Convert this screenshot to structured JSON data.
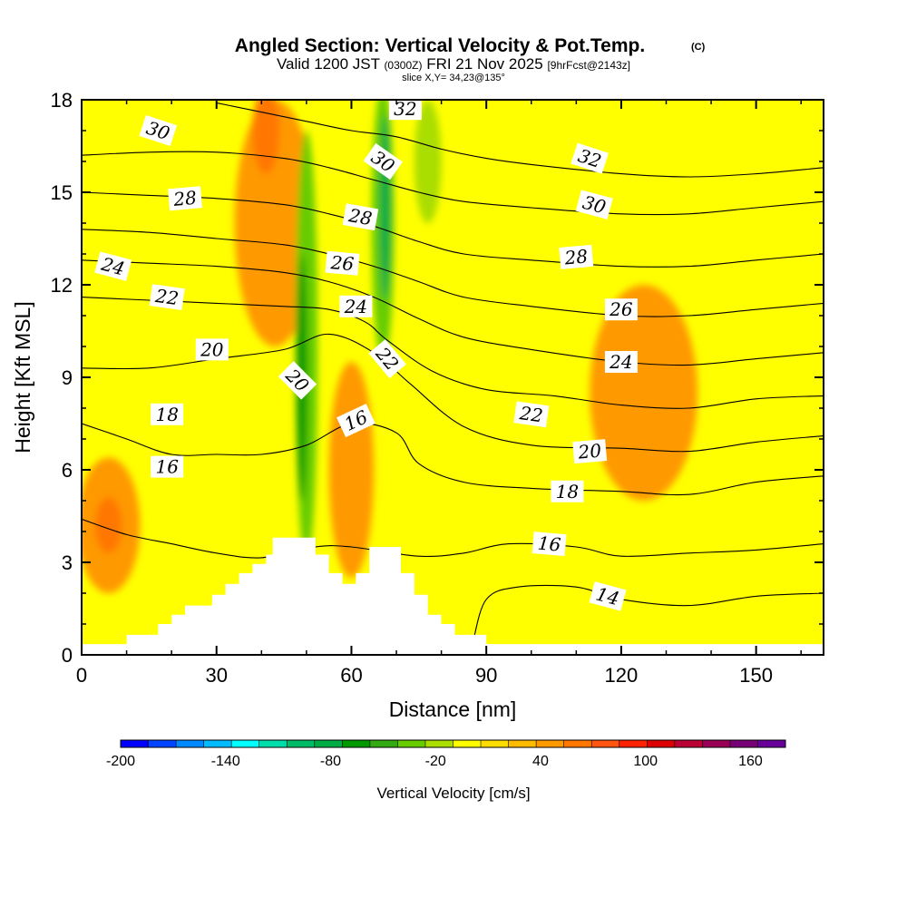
{
  "title": {
    "main": "Angled Section: Vertical Velocity & Pot.Temp.",
    "copyright": "(C)",
    "valid_prefix": "Valid 1200 JST",
    "valid_utc": "(0300Z)",
    "valid_date": "FRI 21 Nov 2025",
    "forecast": "[9hrFcst@2143z]",
    "slice": "slice X,Y= 34,23@135°"
  },
  "chart_data": {
    "type": "heatmap",
    "xlabel": "Distance [nm]",
    "ylabel": "Height [Kft MSL]",
    "xlim": [
      0,
      165
    ],
    "ylim": [
      0,
      18
    ],
    "xticks": [
      0,
      30,
      60,
      90,
      120,
      150
    ],
    "yticks": [
      0,
      3,
      6,
      9,
      12,
      15,
      18
    ],
    "grid": false,
    "terrain": [
      [
        0,
        0.35
      ],
      [
        10,
        0.35
      ],
      [
        10,
        0.65
      ],
      [
        17,
        0.65
      ],
      [
        17,
        1.0
      ],
      [
        20,
        1.0
      ],
      [
        20,
        1.3
      ],
      [
        23,
        1.3
      ],
      [
        23,
        1.6
      ],
      [
        29,
        1.6
      ],
      [
        29,
        1.95
      ],
      [
        32,
        1.95
      ],
      [
        32,
        2.3
      ],
      [
        35,
        2.3
      ],
      [
        35,
        2.65
      ],
      [
        38,
        2.65
      ],
      [
        38,
        2.95
      ],
      [
        41,
        2.95
      ],
      [
        41,
        3.25
      ],
      [
        42.5,
        3.25
      ],
      [
        42.5,
        3.8
      ],
      [
        52,
        3.8
      ],
      [
        52,
        3.25
      ],
      [
        55,
        3.25
      ],
      [
        55,
        2.65
      ],
      [
        58,
        2.65
      ],
      [
        58,
        2.3
      ],
      [
        61,
        2.3
      ],
      [
        61,
        2.65
      ],
      [
        64,
        2.65
      ],
      [
        64,
        3.5
      ],
      [
        71,
        3.5
      ],
      [
        71,
        2.65
      ],
      [
        74,
        2.65
      ],
      [
        74,
        1.95
      ],
      [
        77,
        1.95
      ],
      [
        77,
        1.3
      ],
      [
        80,
        1.3
      ],
      [
        80,
        1.0
      ],
      [
        83,
        1.0
      ],
      [
        83,
        0.65
      ],
      [
        90,
        0.65
      ],
      [
        90,
        0.35
      ],
      [
        165,
        0.35
      ]
    ],
    "velocity_features": [
      {
        "kind": "updraft",
        "value": 40,
        "x": 43,
        "y": 14,
        "rx": 9,
        "ry": 4
      },
      {
        "kind": "updraft",
        "value": 60,
        "x": 41,
        "y": 17,
        "rx": 3,
        "ry": 1.4
      },
      {
        "kind": "updraft",
        "value": 40,
        "x": 6,
        "y": 4.2,
        "rx": 7,
        "ry": 2.2
      },
      {
        "kind": "updraft",
        "value": 60,
        "x": 6,
        "y": 4.2,
        "rx": 3,
        "ry": 0.9
      },
      {
        "kind": "updraft",
        "value": 40,
        "x": 60,
        "y": 6,
        "rx": 5,
        "ry": 3.5
      },
      {
        "kind": "updraft",
        "value": 40,
        "x": 125,
        "y": 8.5,
        "rx": 12,
        "ry": 3.5
      },
      {
        "kind": "downdraft",
        "value": -40,
        "x": 50,
        "y": 10,
        "rx": 2.5,
        "ry": 7
      },
      {
        "kind": "downdraft",
        "value": -60,
        "x": 49,
        "y": 9,
        "rx": 1.2,
        "ry": 4
      },
      {
        "kind": "downdraft",
        "value": -40,
        "x": 67,
        "y": 14,
        "rx": 2.5,
        "ry": 4.5
      },
      {
        "kind": "downdraft",
        "value": -80,
        "x": 67.5,
        "y": 14.5,
        "rx": 1.2,
        "ry": 3
      },
      {
        "kind": "downdraft",
        "value": -20,
        "x": 77,
        "y": 16,
        "rx": 3,
        "ry": 2
      }
    ],
    "contours": [
      {
        "value": 14,
        "points": [
          [
            87,
            0.4
          ],
          [
            90,
            1.8
          ],
          [
            97,
            2.2
          ],
          [
            110,
            2.2
          ],
          [
            120,
            1.8
          ],
          [
            135,
            1.6
          ],
          [
            150,
            1.9
          ],
          [
            165,
            2.0
          ]
        ]
      },
      {
        "value": 16,
        "points": [
          [
            0,
            4.4
          ],
          [
            10,
            3.9
          ],
          [
            20,
            3.6
          ],
          [
            30,
            3.3
          ],
          [
            40,
            3.15
          ],
          [
            52,
            3.5
          ],
          [
            60,
            3.5
          ],
          [
            75,
            3.2
          ],
          [
            85,
            3.3
          ],
          [
            95,
            3.6
          ],
          [
            110,
            3.5
          ],
          [
            120,
            3.2
          ],
          [
            135,
            3.3
          ],
          [
            150,
            3.4
          ],
          [
            165,
            3.6
          ]
        ]
      },
      {
        "value": 18,
        "points": [
          [
            0,
            7.5
          ],
          [
            10,
            7.0
          ],
          [
            20,
            6.5
          ],
          [
            30,
            6.5
          ],
          [
            40,
            6.5
          ],
          [
            50,
            6.8
          ],
          [
            60,
            7.5
          ],
          [
            70,
            7.2
          ],
          [
            75,
            6.2
          ],
          [
            85,
            5.6
          ],
          [
            100,
            5.4
          ],
          [
            120,
            5.3
          ],
          [
            135,
            5.2
          ],
          [
            150,
            5.6
          ],
          [
            165,
            5.8
          ]
        ]
      },
      {
        "value": 20,
        "points": [
          [
            0,
            9.3
          ],
          [
            15,
            9.3
          ],
          [
            30,
            9.6
          ],
          [
            45,
            9.9
          ],
          [
            55,
            10.4
          ],
          [
            65,
            9.8
          ],
          [
            73,
            8.8
          ],
          [
            85,
            7.4
          ],
          [
            100,
            6.8
          ],
          [
            120,
            6.7
          ],
          [
            135,
            6.6
          ],
          [
            150,
            6.9
          ],
          [
            165,
            7.1
          ]
        ]
      },
      {
        "value": 22,
        "points": [
          [
            0,
            11.6
          ],
          [
            15,
            11.5
          ],
          [
            30,
            11.4
          ],
          [
            45,
            11.3
          ],
          [
            55,
            11.2
          ],
          [
            63,
            10.8
          ],
          [
            68,
            10.2
          ],
          [
            78,
            9.2
          ],
          [
            90,
            8.6
          ],
          [
            105,
            8.4
          ],
          [
            120,
            8.1
          ],
          [
            135,
            8.0
          ],
          [
            150,
            8.3
          ],
          [
            165,
            8.4
          ]
        ]
      },
      {
        "value": 24,
        "points": [
          [
            0,
            12.8
          ],
          [
            15,
            12.7
          ],
          [
            30,
            12.6
          ],
          [
            45,
            12.4
          ],
          [
            55,
            12.1
          ],
          [
            65,
            11.6
          ],
          [
            75,
            10.9
          ],
          [
            85,
            10.3
          ],
          [
            100,
            9.9
          ],
          [
            120,
            9.5
          ],
          [
            135,
            9.4
          ],
          [
            150,
            9.6
          ],
          [
            165,
            9.8
          ]
        ]
      },
      {
        "value": 26,
        "points": [
          [
            0,
            13.8
          ],
          [
            15,
            13.7
          ],
          [
            30,
            13.5
          ],
          [
            45,
            13.3
          ],
          [
            55,
            13.0
          ],
          [
            65,
            12.6
          ],
          [
            75,
            12.1
          ],
          [
            85,
            11.6
          ],
          [
            100,
            11.3
          ],
          [
            120,
            11.0
          ],
          [
            135,
            11.0
          ],
          [
            150,
            11.2
          ],
          [
            165,
            11.4
          ]
        ]
      },
      {
        "value": 28,
        "points": [
          [
            0,
            15.0
          ],
          [
            15,
            14.9
          ],
          [
            30,
            14.8
          ],
          [
            45,
            14.6
          ],
          [
            55,
            14.3
          ],
          [
            65,
            13.9
          ],
          [
            75,
            13.4
          ],
          [
            85,
            13.0
          ],
          [
            100,
            12.8
          ],
          [
            120,
            12.6
          ],
          [
            135,
            12.6
          ],
          [
            150,
            12.8
          ],
          [
            165,
            13.0
          ]
        ]
      },
      {
        "value": 30,
        "points": [
          [
            0,
            16.2
          ],
          [
            15,
            16.3
          ],
          [
            30,
            16.3
          ],
          [
            45,
            16.1
          ],
          [
            55,
            15.8
          ],
          [
            65,
            15.4
          ],
          [
            75,
            15.0
          ],
          [
            85,
            14.7
          ],
          [
            100,
            14.5
          ],
          [
            120,
            14.3
          ],
          [
            135,
            14.3
          ],
          [
            150,
            14.5
          ],
          [
            165,
            14.7
          ]
        ]
      },
      {
        "value": 32,
        "points": [
          [
            30,
            17.9
          ],
          [
            40,
            17.6
          ],
          [
            50,
            17.3
          ],
          [
            60,
            17.0
          ],
          [
            70,
            16.8
          ],
          [
            80,
            16.4
          ],
          [
            90,
            16.1
          ],
          [
            100,
            15.9
          ],
          [
            120,
            15.6
          ],
          [
            135,
            15.5
          ],
          [
            150,
            15.6
          ],
          [
            165,
            15.8
          ]
        ]
      }
    ],
    "contour_labels": [
      {
        "text": "30",
        "x": 17,
        "y": 17.0,
        "rot": 18
      },
      {
        "text": "32",
        "x": 72,
        "y": 17.7,
        "rot": 0
      },
      {
        "text": "30",
        "x": 67,
        "y": 16.0,
        "rot": 35
      },
      {
        "text": "32",
        "x": 113,
        "y": 16.1,
        "rot": 18
      },
      {
        "text": "28",
        "x": 23,
        "y": 14.8,
        "rot": -5
      },
      {
        "text": "28",
        "x": 62,
        "y": 14.2,
        "rot": 10
      },
      {
        "text": "30",
        "x": 114,
        "y": 14.6,
        "rot": 15
      },
      {
        "text": "24",
        "x": 7,
        "y": 12.6,
        "rot": 15
      },
      {
        "text": "26",
        "x": 58,
        "y": 12.7,
        "rot": 5
      },
      {
        "text": "28",
        "x": 110,
        "y": 12.9,
        "rot": -5
      },
      {
        "text": "22",
        "x": 19,
        "y": 11.6,
        "rot": 8
      },
      {
        "text": "24",
        "x": 61,
        "y": 11.3,
        "rot": 0
      },
      {
        "text": "26",
        "x": 120,
        "y": 11.2,
        "rot": 0
      },
      {
        "text": "20",
        "x": 29,
        "y": 9.9,
        "rot": 0
      },
      {
        "text": "22",
        "x": 68,
        "y": 9.6,
        "rot": 50
      },
      {
        "text": "24",
        "x": 120,
        "y": 9.5,
        "rot": 0
      },
      {
        "text": "20",
        "x": 48,
        "y": 8.9,
        "rot": 45
      },
      {
        "text": "18",
        "x": 19,
        "y": 7.8,
        "rot": 0
      },
      {
        "text": "16",
        "x": 61,
        "y": 7.6,
        "rot": -25
      },
      {
        "text": "22",
        "x": 100,
        "y": 7.8,
        "rot": 8
      },
      {
        "text": "20",
        "x": 113,
        "y": 6.6,
        "rot": -5
      },
      {
        "text": "16",
        "x": 19,
        "y": 6.1,
        "rot": 0
      },
      {
        "text": "18",
        "x": 108,
        "y": 5.3,
        "rot": 0
      },
      {
        "text": "16",
        "x": 104,
        "y": 3.6,
        "rot": 5
      },
      {
        "text": "14",
        "x": 117,
        "y": 1.9,
        "rot": 15
      }
    ],
    "colorbar": {
      "title": "Vertical Velocity [cm/s]",
      "min": -200,
      "max": 180,
      "tick_values": [
        -200,
        -140,
        -80,
        -20,
        40,
        100,
        160
      ],
      "tick_labels": [
        "-200",
        "-140",
        "-80",
        "-20",
        "40",
        "100",
        "160"
      ],
      "colors": [
        "#0000ff",
        "#0044ff",
        "#0088ff",
        "#00bbff",
        "#00ffff",
        "#00ddaa",
        "#00bb66",
        "#00aa44",
        "#009900",
        "#33aa11",
        "#66cc00",
        "#aadd00",
        "#ffff00",
        "#ffdd00",
        "#ffbb00",
        "#ff9900",
        "#ff7700",
        "#ff5511",
        "#ff2200",
        "#dd0000",
        "#bb0033",
        "#990055",
        "#770077",
        "#660099"
      ]
    }
  }
}
